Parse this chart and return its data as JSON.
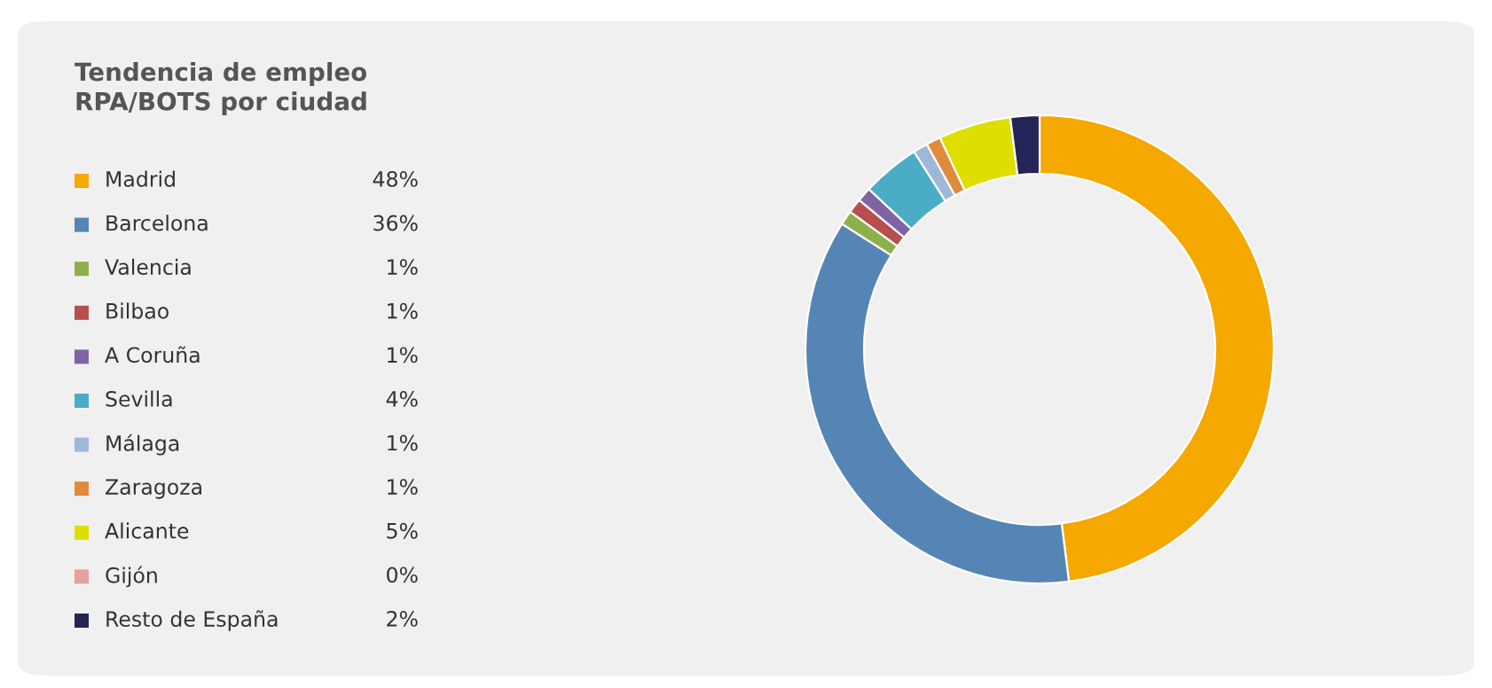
{
  "chart_data": {
    "type": "donut",
    "title": "Tendencia de empleo\nRPA/BOTS por ciudad",
    "categories": [
      "Madrid",
      "Barcelona",
      "Valencia",
      "Bilbao",
      "A Coruña",
      "Sevilla",
      "Málaga",
      "Zaragoza",
      "Alicante",
      "Gijón",
      "Resto de España"
    ],
    "values": [
      48,
      36,
      1,
      1,
      1,
      4,
      1,
      1,
      5,
      0,
      2
    ],
    "value_labels": [
      "48%",
      "36%",
      "1%",
      "1%",
      "1%",
      "4%",
      "1%",
      "1%",
      "5%",
      "0%",
      "2%"
    ],
    "colors": [
      "#f5a800",
      "#5585b5",
      "#8db04a",
      "#b84f4f",
      "#8064a2",
      "#4bacc6",
      "#9fb8d8",
      "#e08a3c",
      "#dede00",
      "#e6a0a0",
      "#252456"
    ],
    "legend": "left"
  }
}
